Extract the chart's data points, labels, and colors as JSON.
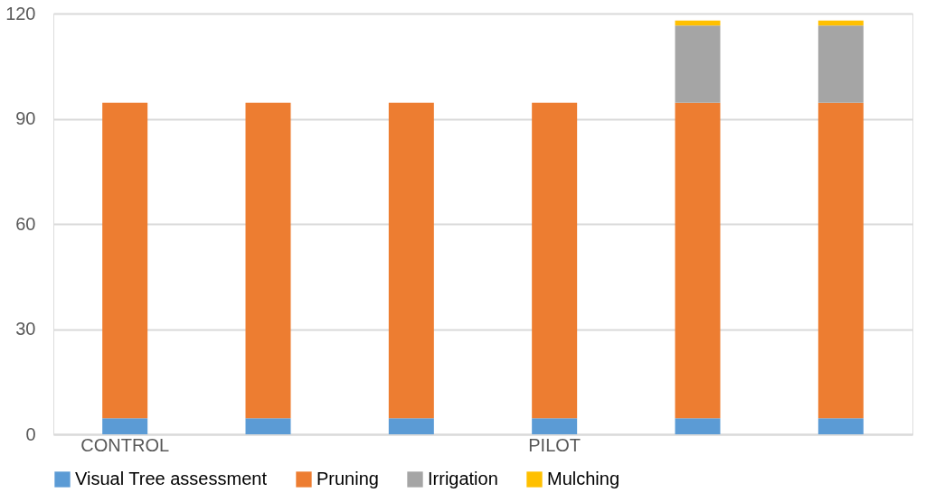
{
  "chart_data": {
    "type": "bar",
    "stacked": true,
    "categories": [
      "CONTROL",
      null,
      null,
      "PILOT",
      null,
      null
    ],
    "series": [
      {
        "name": "Visual Tree assessment",
        "color": "#5b9bd5",
        "values": [
          4.6,
          4.6,
          4.6,
          4.6,
          4.6,
          4.6
        ]
      },
      {
        "name": "Pruning",
        "color": "#ed7d31",
        "values": [
          90,
          90,
          90,
          90,
          90,
          90
        ]
      },
      {
        "name": "Irrigation",
        "color": "#a5a5a5",
        "values": [
          0,
          0,
          0,
          0,
          22,
          22
        ]
      },
      {
        "name": "Mulching",
        "color": "#ffc000",
        "values": [
          0,
          0,
          0,
          0,
          1.4,
          1.4
        ]
      }
    ],
    "ylim": [
      0,
      120
    ],
    "yticks": [
      0,
      30,
      60,
      90,
      120
    ],
    "grid": "y",
    "legend": "bottom"
  }
}
